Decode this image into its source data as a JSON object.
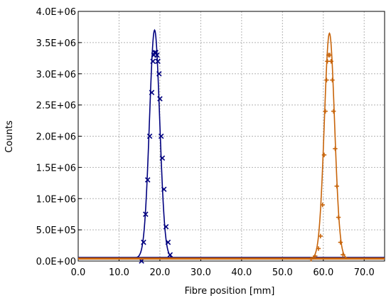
{
  "chart_data": {
    "type": "line",
    "title": "",
    "xlabel": "Fibre position [mm]",
    "ylabel": "Counts",
    "xlim": [
      0,
      75
    ],
    "ylim": [
      0,
      4000000
    ],
    "grid": true,
    "x_ticks": [
      "0.0",
      "10.0",
      "20.0",
      "30.0",
      "40.0",
      "50.0",
      "60.0",
      "70.0"
    ],
    "y_ticks": [
      "0.0E+00",
      "5.0E+05",
      "1.0E+06",
      "1.5E+06",
      "2.0E+06",
      "2.5E+06",
      "3.0E+06",
      "3.5E+06",
      "4.0E+06"
    ],
    "series": [
      {
        "color": "#00007f",
        "marker": "x",
        "points": [
          [
            15.5,
            0
          ],
          [
            16.0,
            300000
          ],
          [
            16.5,
            750000
          ],
          [
            17.0,
            1300000
          ],
          [
            17.5,
            2000000
          ],
          [
            18.0,
            2700000
          ],
          [
            18.3,
            3200000
          ],
          [
            18.5,
            3300000
          ],
          [
            18.7,
            3340000
          ],
          [
            19.0,
            3340000
          ],
          [
            19.3,
            3300000
          ],
          [
            19.5,
            3200000
          ],
          [
            19.8,
            3000000
          ],
          [
            20.0,
            2600000
          ],
          [
            20.3,
            2000000
          ],
          [
            20.6,
            1650000
          ],
          [
            21.0,
            1150000
          ],
          [
            21.5,
            550000
          ],
          [
            22.0,
            300000
          ],
          [
            22.5,
            100000
          ]
        ],
        "fit_peak": 3700000,
        "fit_center": 18.7,
        "fit_sigma": 1.25,
        "fit_baseline": 50000
      },
      {
        "color": "#c8640a",
        "marker": "plus",
        "points": [
          [
            57.0,
            30000
          ],
          [
            58.0,
            80000
          ],
          [
            58.8,
            200000
          ],
          [
            59.3,
            400000
          ],
          [
            59.8,
            900000
          ],
          [
            60.2,
            1700000
          ],
          [
            60.5,
            2400000
          ],
          [
            60.8,
            2900000
          ],
          [
            61.0,
            3200000
          ],
          [
            61.3,
            3300000
          ],
          [
            61.6,
            3300000
          ],
          [
            61.9,
            3200000
          ],
          [
            62.2,
            2900000
          ],
          [
            62.5,
            2400000
          ],
          [
            62.9,
            1800000
          ],
          [
            63.3,
            1200000
          ],
          [
            63.7,
            700000
          ],
          [
            64.2,
            300000
          ],
          [
            64.8,
            100000
          ]
        ],
        "fit_peak": 3650000,
        "fit_center": 61.5,
        "fit_sigma": 1.25,
        "fit_baseline": 40000
      }
    ]
  }
}
